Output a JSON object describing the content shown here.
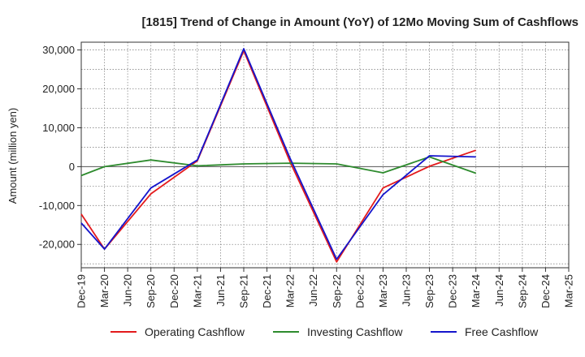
{
  "chart_data": {
    "type": "line",
    "title": "[1815]  Trend of Change in Amount (YoY) of 12Mo Moving Sum of Cashflows",
    "xlabel": "",
    "ylabel": "Amount (million yen)",
    "ylim": [
      -26000,
      32000
    ],
    "yticks": [
      -20000,
      -10000,
      0,
      10000,
      20000,
      30000
    ],
    "ytick_labels": [
      "-20,000",
      "-10,000",
      "0",
      "10,000",
      "20,000",
      "30,000"
    ],
    "grid": true,
    "legend_position": "bottom",
    "categories": [
      "Dec-19",
      "Mar-20",
      "Jun-20",
      "Sep-20",
      "Dec-20",
      "Mar-21",
      "Jun-21",
      "Sep-21",
      "Dec-21",
      "Mar-22",
      "Jun-22",
      "Sep-22",
      "Dec-22",
      "Mar-23",
      "Jun-23",
      "Sep-23",
      "Dec-23",
      "Mar-24",
      "Jun-24",
      "Sep-24",
      "Dec-24",
      "Mar-25"
    ],
    "series": [
      {
        "name": "Operating Cashflow",
        "color": "#e31a1c",
        "values": [
          -12200,
          -21200,
          null,
          -7000,
          null,
          1500,
          null,
          29800,
          null,
          1200,
          null,
          -24500,
          null,
          -5500,
          null,
          100,
          null,
          4200,
          null,
          null,
          null,
          null
        ]
      },
      {
        "name": "Investing Cashflow",
        "color": "#2e8b2e",
        "values": [
          -2300,
          0,
          null,
          1700,
          null,
          200,
          null,
          700,
          null,
          900,
          null,
          700,
          null,
          -1600,
          null,
          2500,
          null,
          -1700,
          null,
          null,
          null,
          null
        ]
      },
      {
        "name": "Free Cashflow",
        "color": "#1414cc",
        "values": [
          -14500,
          -21200,
          null,
          -5500,
          null,
          1700,
          null,
          30300,
          null,
          2100,
          null,
          -23800,
          null,
          -7200,
          null,
          2800,
          null,
          2500,
          null,
          null,
          null,
          null
        ]
      }
    ]
  }
}
